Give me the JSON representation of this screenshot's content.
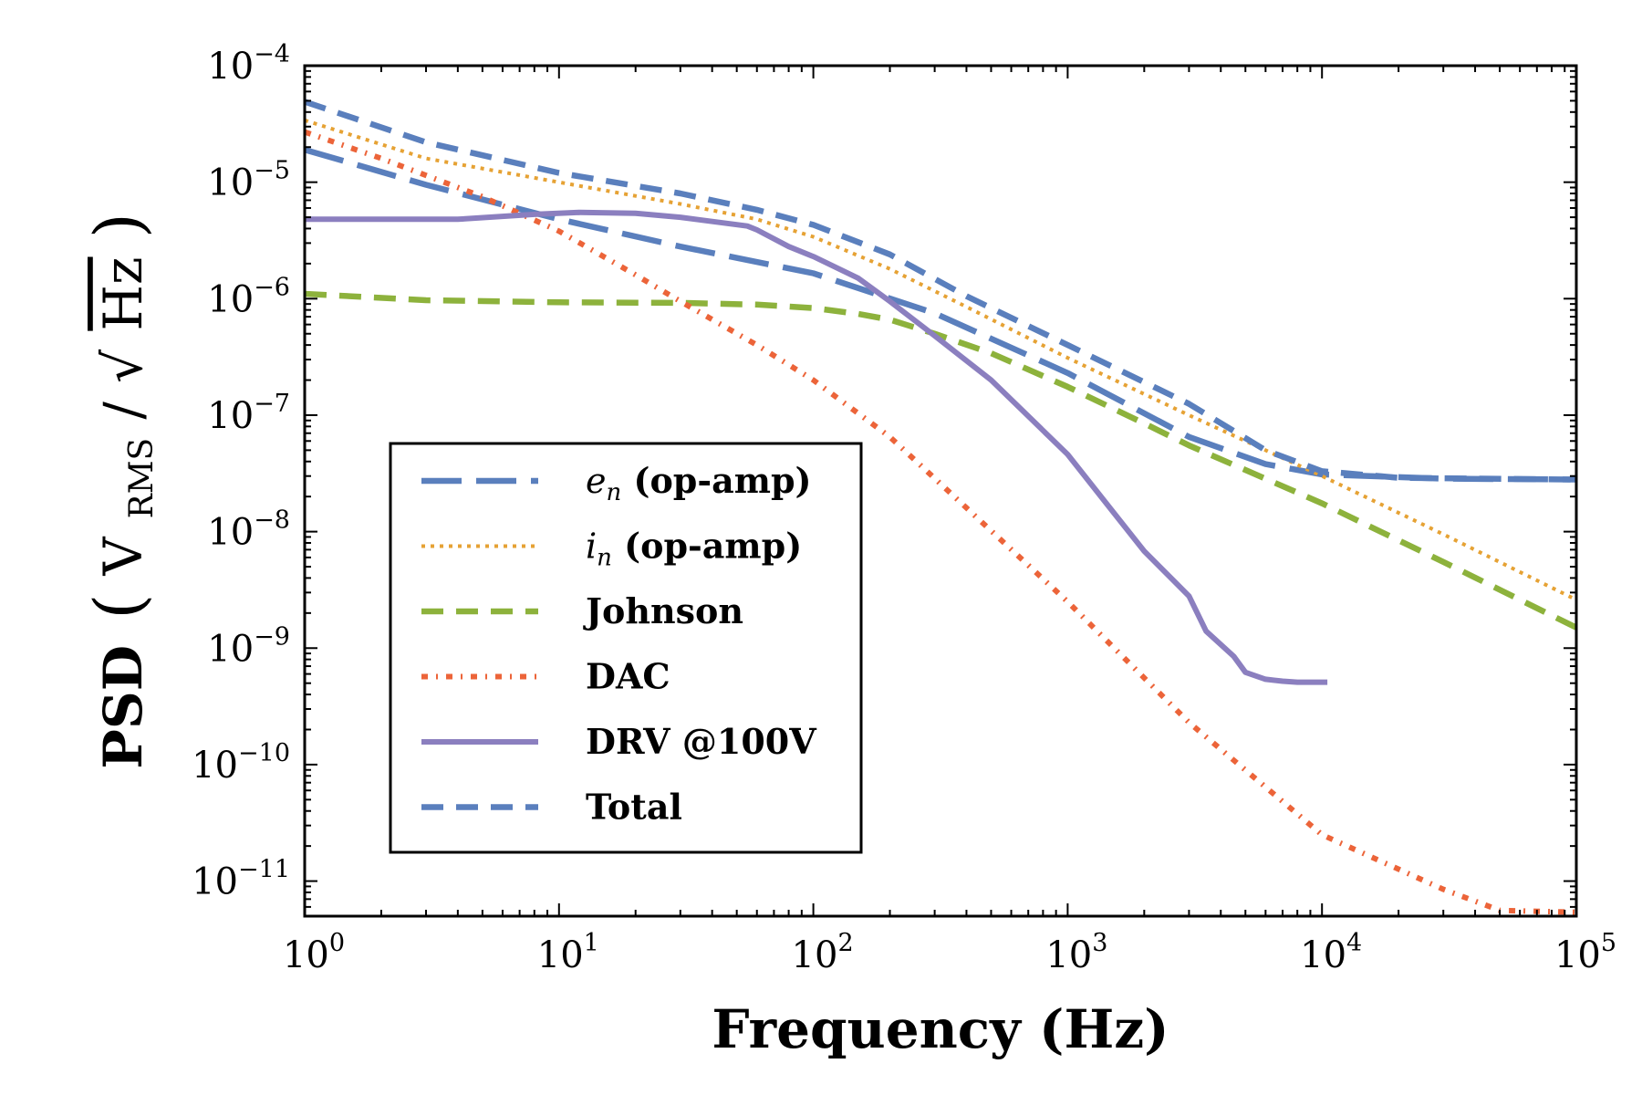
{
  "chart_data": {
    "type": "line",
    "xscale": "log",
    "yscale": "log",
    "xlim": [
      1,
      100000
    ],
    "ylim": [
      5e-12,
      0.0001
    ],
    "xlabel": "Frequency (Hz)",
    "ylabel_prefix": "PSD",
    "ylabel_unit": {
      "open": "(",
      "v": "V",
      "sub": "RMS",
      "slash": "/",
      "root": "√",
      "hz": "Hz",
      "close": ")"
    },
    "xticks": [
      {
        "base": "10",
        "exp": "0"
      },
      {
        "base": "10",
        "exp": "1"
      },
      {
        "base": "10",
        "exp": "2"
      },
      {
        "base": "10",
        "exp": "3"
      },
      {
        "base": "10",
        "exp": "4"
      },
      {
        "base": "10",
        "exp": "5"
      }
    ],
    "yticks": [
      {
        "base": "10",
        "exp": "−4"
      },
      {
        "base": "10",
        "exp": "−5"
      },
      {
        "base": "10",
        "exp": "−6"
      },
      {
        "base": "10",
        "exp": "−7"
      },
      {
        "base": "10",
        "exp": "−8"
      },
      {
        "base": "10",
        "exp": "−9"
      },
      {
        "base": "10",
        "exp": "−10"
      },
      {
        "base": "10",
        "exp": "−11"
      }
    ],
    "grid": false,
    "legend_position": "lower-left",
    "series": [
      {
        "label_main": "e",
        "label_sub": "n",
        "label_rest": " (op-amp)",
        "color": "#5a7fbd",
        "style": "longdash",
        "x": [
          1,
          3,
          10,
          30,
          100,
          300,
          1000,
          3000,
          6000,
          10000,
          30000,
          100000
        ],
        "y": [
          1.9e-05,
          9.5e-06,
          4.8e-06,
          2.8e-06,
          1.65e-06,
          7.5e-07,
          2.3e-07,
          6.5e-08,
          3.8e-08,
          3.1e-08,
          2.85e-08,
          2.8e-08
        ]
      },
      {
        "label_main": "i",
        "label_sub": "n",
        "label_rest": " (op-amp)",
        "color": "#e6a234",
        "style": "dotted",
        "x": [
          1,
          3,
          10,
          30,
          60,
          100,
          200,
          400,
          1000,
          3000,
          10000,
          30000,
          100000
        ],
        "y": [
          3.4e-05,
          1.6e-05,
          1e-05,
          6.5e-06,
          4.8e-06,
          3.4e-06,
          1.8e-06,
          8.5e-07,
          3.1e-07,
          1e-07,
          3e-08,
          9.5e-09,
          2.6e-09
        ]
      },
      {
        "label_main": "Johnson",
        "label_sub": "",
        "label_rest": "",
        "color": "#8db23c",
        "style": "dashed",
        "x": [
          1,
          3,
          10,
          30,
          60,
          100,
          150,
          200,
          300,
          500,
          1000,
          2000,
          3000,
          10000,
          30000,
          100000
        ],
        "y": [
          1.1e-06,
          9.7e-07,
          9.3e-07,
          9.2e-07,
          8.9e-07,
          8.3e-07,
          7.4e-07,
          6.6e-07,
          5e-07,
          3.4e-07,
          1.75e-07,
          8.5e-08,
          5.5e-08,
          1.75e-08,
          5.5e-09,
          1.5e-09
        ]
      },
      {
        "label_main": "DAC",
        "label_sub": "",
        "label_rest": "",
        "color": "#ec6439",
        "style": "dashdot",
        "x": [
          1,
          2,
          5,
          10,
          20,
          30,
          60,
          100,
          200,
          400,
          1000,
          3000,
          10000,
          30000,
          50000,
          100000
        ],
        "y": [
          2.7e-05,
          1.6e-05,
          7.5e-06,
          3.8e-06,
          1.6e-06,
          9.5e-07,
          4e-07,
          2e-07,
          6.5e-08,
          1.6e-08,
          2.5e-09,
          2.3e-10,
          2.5e-11,
          8.5e-12,
          5.6e-12,
          5.4e-12
        ]
      },
      {
        "label_main": "DRV @100V",
        "label_sub": "",
        "label_rest": "",
        "color": "#8b7fbf",
        "style": "solid",
        "x": [
          1,
          2,
          4,
          8,
          12,
          20,
          30,
          40,
          55,
          60,
          80,
          100,
          150,
          200,
          300,
          500,
          1000,
          1500,
          2000,
          3000,
          3500,
          4500,
          5000,
          6000,
          7000,
          8000,
          9000,
          10500
        ],
        "y": [
          4.8e-06,
          4.8e-06,
          4.8e-06,
          5.3e-06,
          5.5e-06,
          5.4e-06,
          5e-06,
          4.6e-06,
          4.2e-06,
          3.9e-06,
          2.8e-06,
          2.3e-06,
          1.5e-06,
          9.5e-07,
          4.8e-07,
          2e-07,
          4.6e-08,
          1.5e-08,
          6.8e-09,
          2.8e-09,
          1.4e-09,
          8.5e-10,
          6.2e-10,
          5.4e-10,
          5.2e-10,
          5.1e-10,
          5.1e-10,
          5.1e-10
        ]
      },
      {
        "label_main": "Total",
        "label_sub": "",
        "label_rest": "",
        "color": "#5a7fbd",
        "style": "dashed",
        "x": [
          1,
          3,
          10,
          30,
          60,
          100,
          200,
          400,
          1000,
          3000,
          6000,
          10000,
          20000,
          100000
        ],
        "y": [
          4.9e-05,
          2.2e-05,
          1.2e-05,
          8e-06,
          5.8e-06,
          4.3e-06,
          2.4e-06,
          1.05e-06,
          4e-07,
          1.25e-07,
          5e-08,
          3.3e-08,
          2.9e-08,
          2.8e-08
        ]
      }
    ]
  }
}
